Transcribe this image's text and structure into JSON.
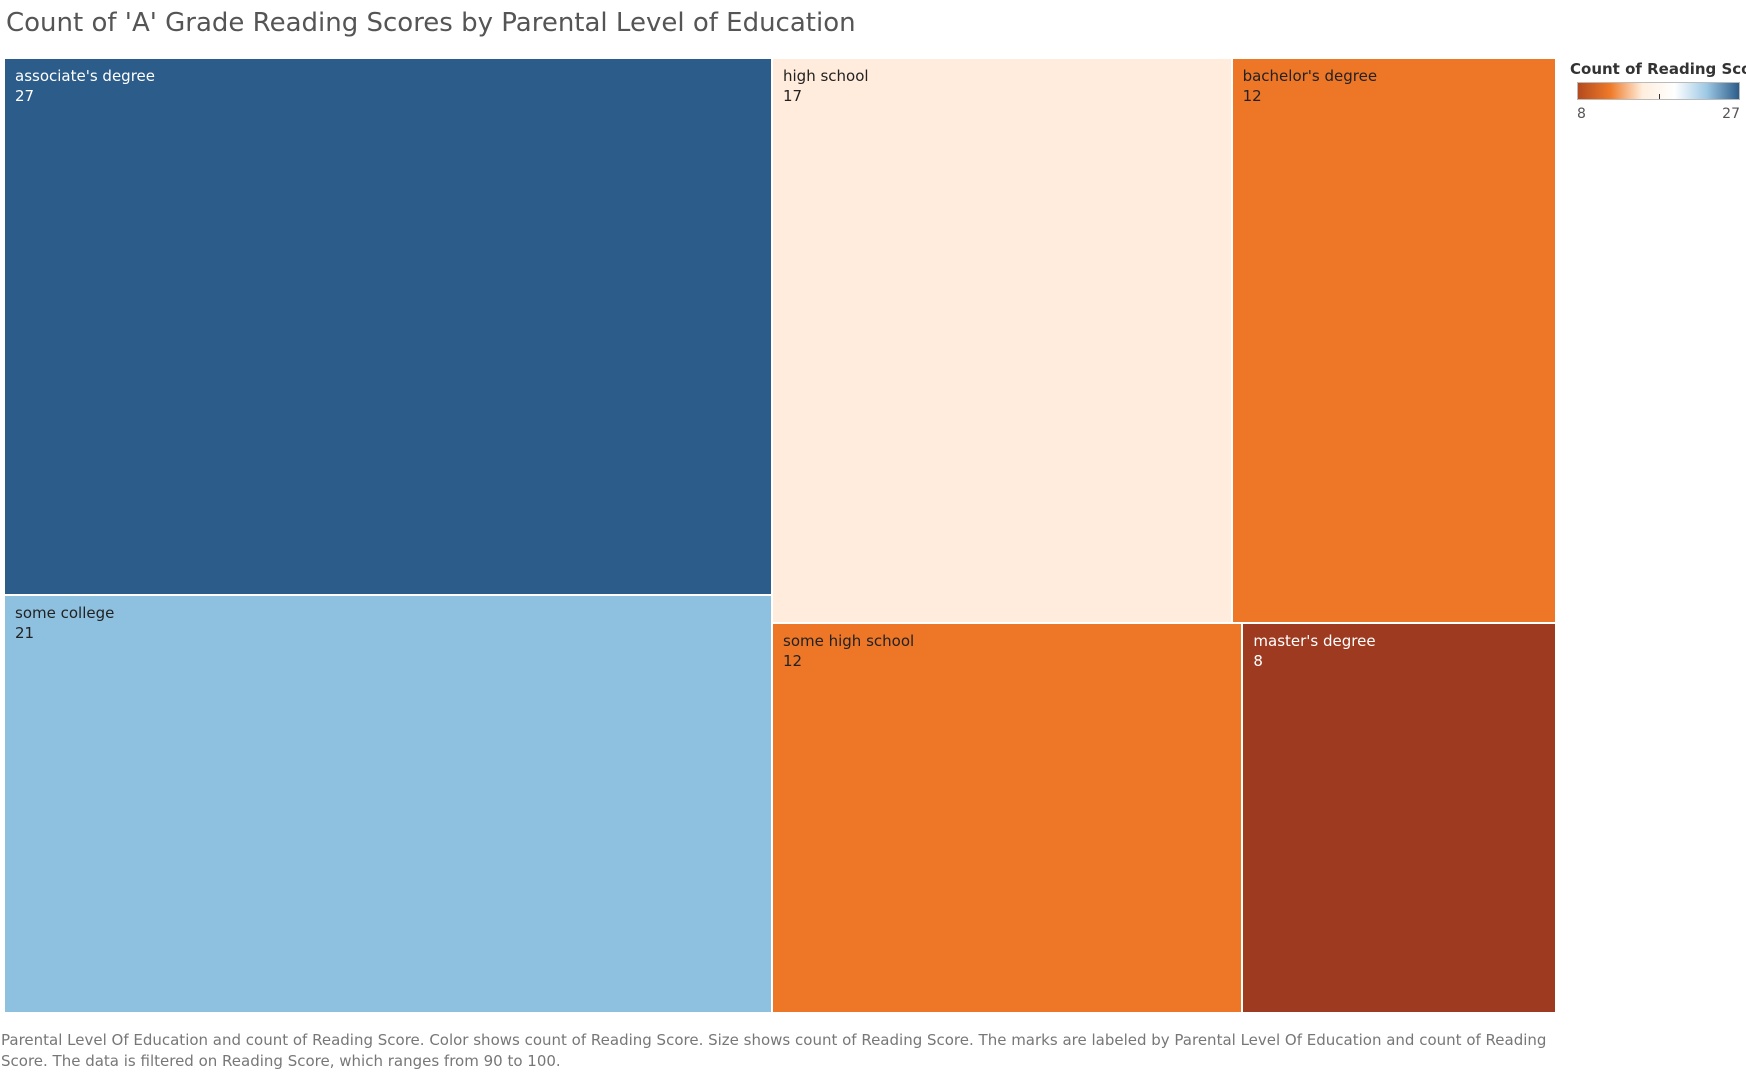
{
  "chart_data": {
    "type": "treemap",
    "title": "Count of 'A' Grade Reading Scores by Parental Level of Education",
    "caption": "Parental Level Of Education and count of Reading Score.  Color shows count of Reading Score.  Size shows count of Reading Score.  The marks are labeled by Parental Level Of Education and count of Reading Score. The data is filtered on Reading Score, which ranges from 90 to 100.",
    "legend": {
      "title": "Count of Reading Score",
      "min": 8,
      "max": 27,
      "placement": "top-right",
      "colors": [
        "#b44a1e",
        "#ef7a28",
        "#ffeedd",
        "#ffffff",
        "#9cc8e4",
        "#2c5c8a"
      ]
    },
    "items": [
      {
        "label": "associate's degree",
        "value": 27,
        "color": "#2c5c8a",
        "text_color": "#ffffff"
      },
      {
        "label": "some college",
        "value": 21,
        "color": "#8ec0e0",
        "text_color": "#222222"
      },
      {
        "label": "high school",
        "value": 17,
        "color": "#ffecdc",
        "text_color": "#222222"
      },
      {
        "label": "bachelor's degree",
        "value": 12,
        "color": "#ee7627",
        "text_color": "#222222"
      },
      {
        "label": "some high school",
        "value": 12,
        "color": "#ee7627",
        "text_color": "#222222"
      },
      {
        "label": "master's degree",
        "value": 8,
        "color": "#9e3a20",
        "text_color": "#ffffff"
      }
    ]
  }
}
